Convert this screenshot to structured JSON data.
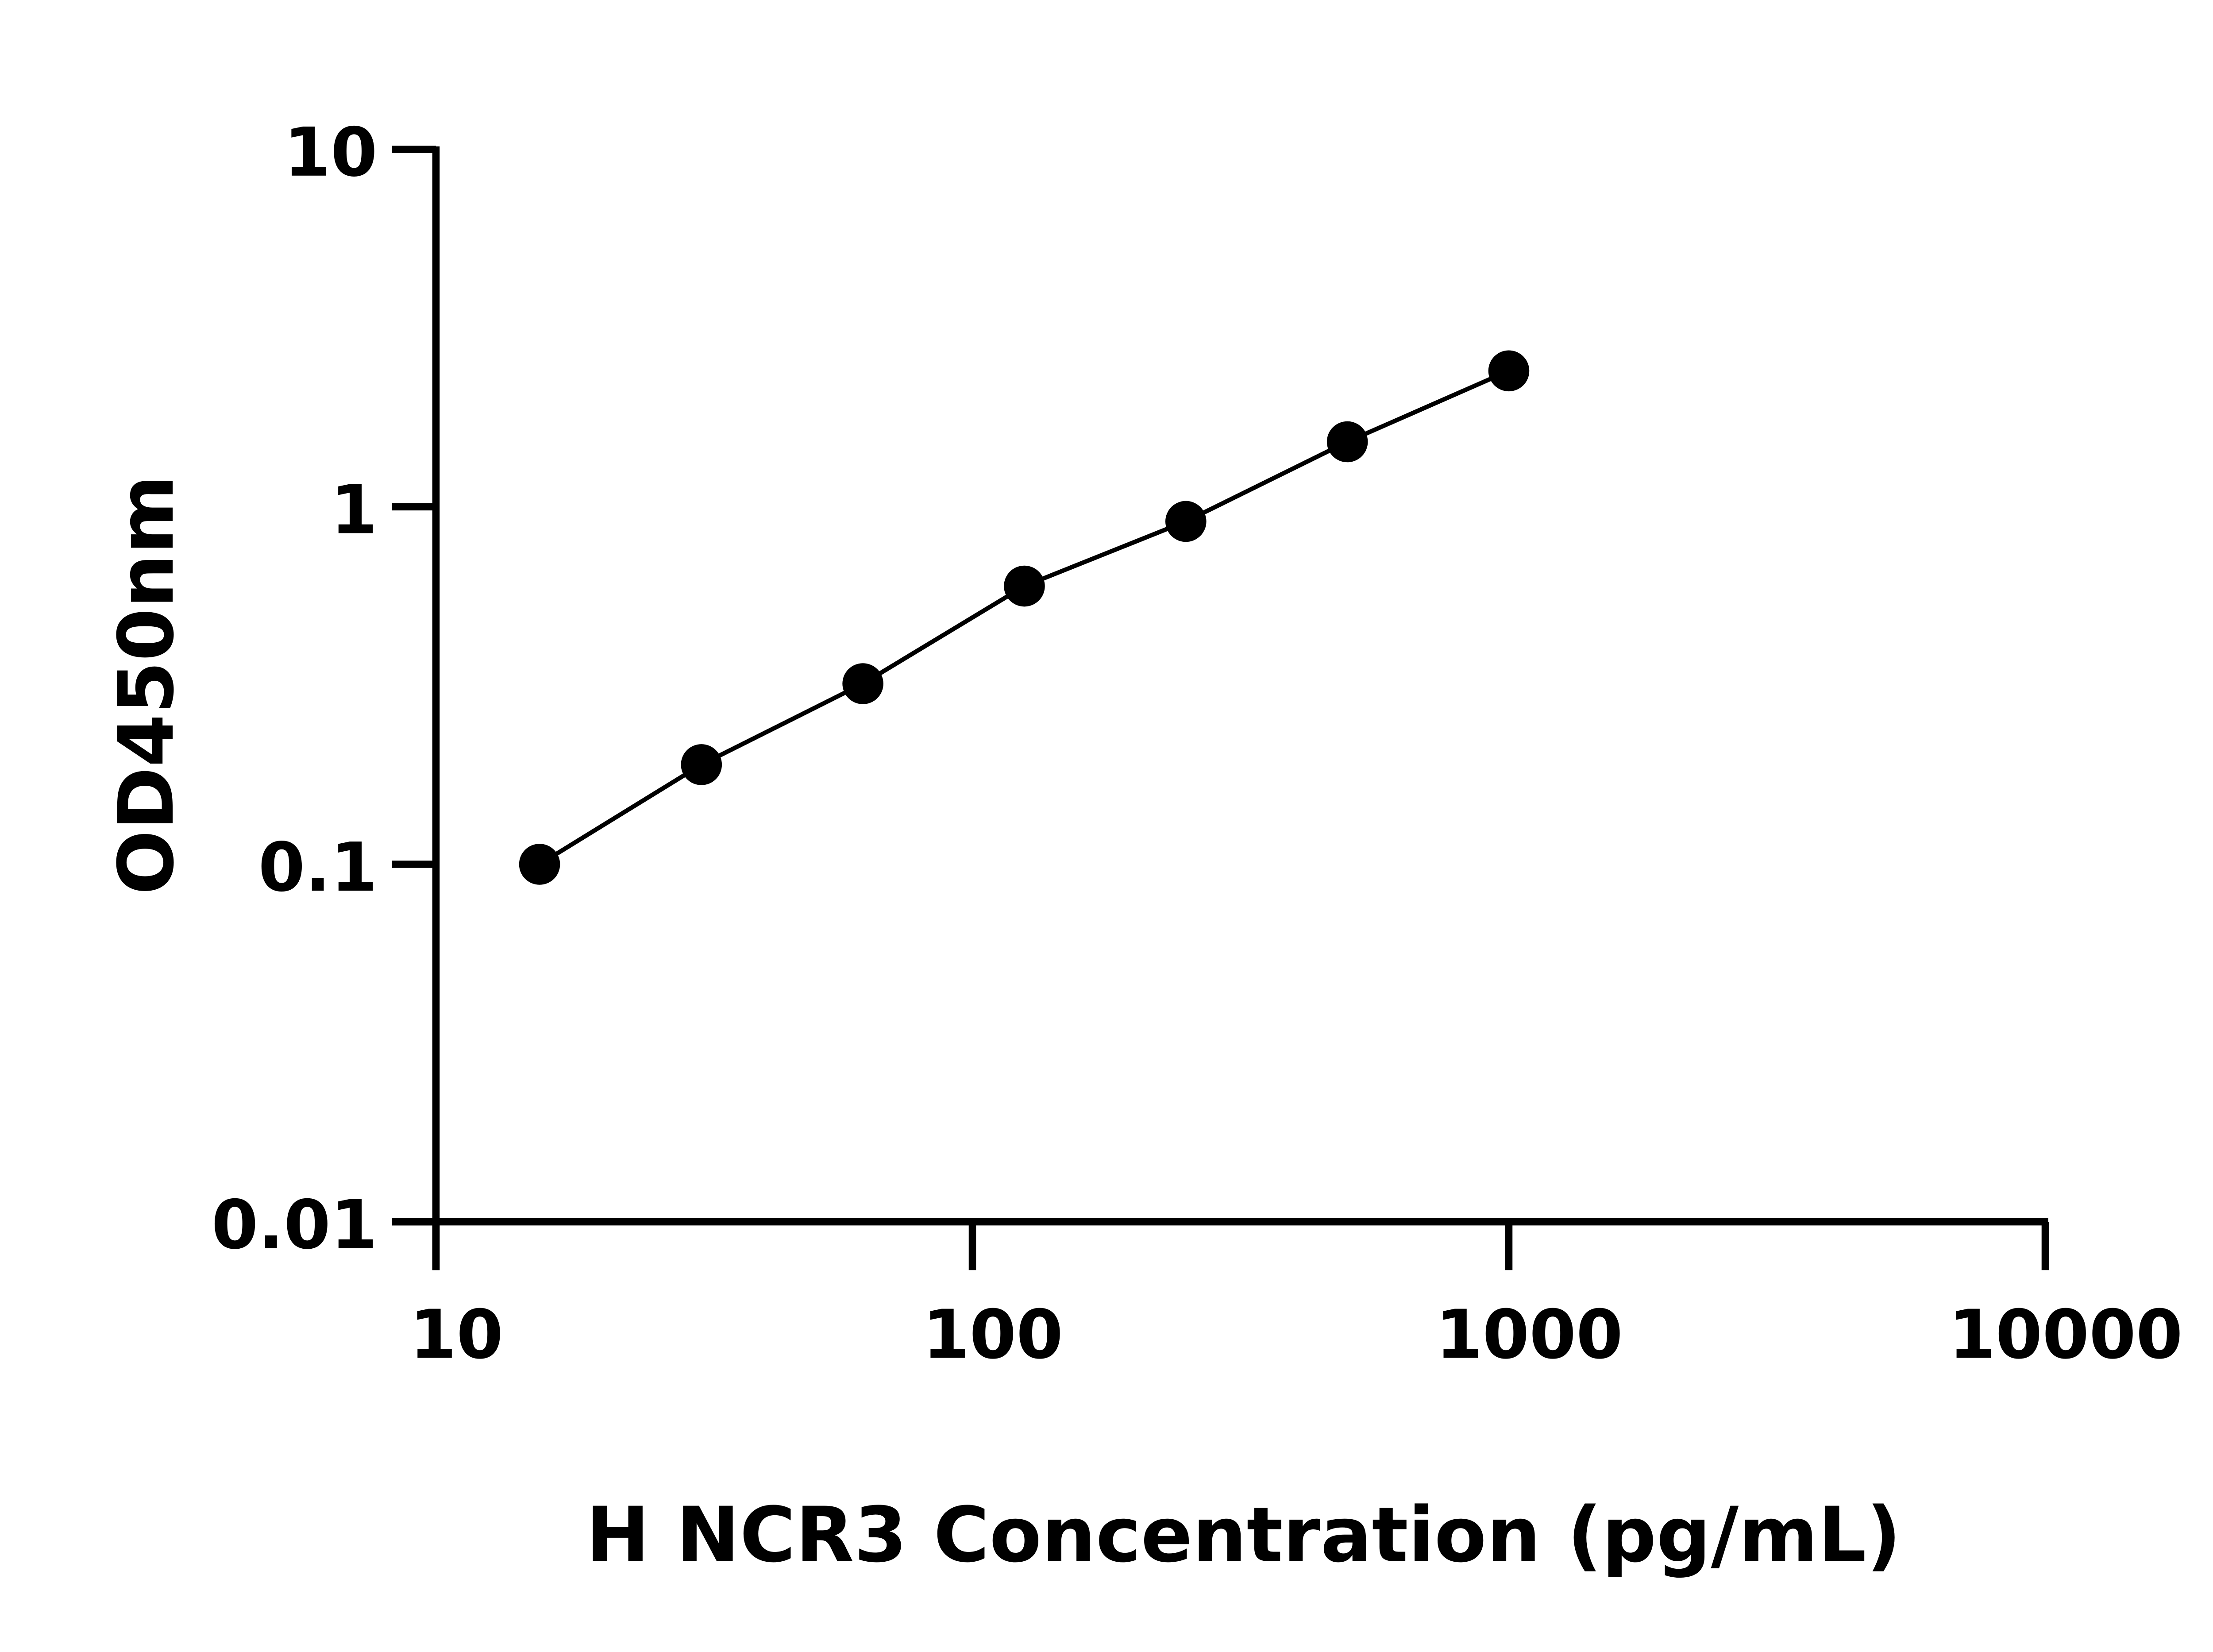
{
  "chart_data": {
    "type": "line",
    "title": "",
    "xlabel": "H NCR3 Concentration (pg/mL)",
    "ylabel": "OD450nm",
    "x_scale": "log",
    "y_scale": "log",
    "xlim": [
      10,
      10000
    ],
    "ylim": [
      0.01,
      10
    ],
    "x_ticks": [
      "10",
      "100",
      "1000",
      "10000"
    ],
    "y_ticks": [
      "10",
      "1",
      "0.1",
      "0.01"
    ],
    "grid": false,
    "series": [
      {
        "x": [
          15.6,
          31.25,
          62.5,
          125,
          250,
          500,
          1000
        ],
        "y": [
          0.1,
          0.19,
          0.32,
          0.6,
          0.91,
          1.52,
          2.4
        ],
        "color": "#000000",
        "marker": "circle"
      }
    ]
  }
}
